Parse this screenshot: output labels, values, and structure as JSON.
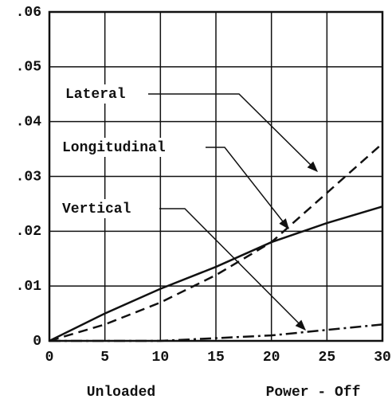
{
  "chart_data": {
    "type": "line",
    "x": [
      0,
      5,
      10,
      15,
      20,
      25,
      30
    ],
    "series": [
      {
        "name": "Lateral",
        "color": "#111111",
        "style": "dashed",
        "values": [
          0,
          0.003,
          0.007,
          0.012,
          0.018,
          0.027,
          0.036
        ]
      },
      {
        "name": "Longitudinal",
        "color": "#111111",
        "style": "solid",
        "values": [
          0,
          0.005,
          0.0095,
          0.0135,
          0.018,
          0.0215,
          0.0245
        ]
      },
      {
        "name": "Vertical",
        "color": "#111111",
        "style": "dashdot",
        "values": [
          0,
          0,
          0,
          0.0005,
          0.001,
          0.002,
          0.003
        ]
      }
    ],
    "xlim": [
      0,
      30
    ],
    "xticks": [
      0,
      5,
      10,
      15,
      20,
      25,
      30
    ],
    "ylim": [
      0,
      0.06
    ],
    "yticks": [
      0,
      {
        "value": 0.01,
        "label": ".01"
      },
      {
        "value": 0.02,
        "label": ".02"
      },
      {
        "value": 0.03,
        "label": ".03"
      },
      {
        "value": 0.04,
        "label": ".04"
      },
      {
        "value": 0.05,
        "label": ".05"
      },
      {
        "value": 0.06,
        "label": ".06"
      }
    ],
    "grid": true,
    "annotations": [
      "Unloaded",
      "Power - Off"
    ]
  }
}
